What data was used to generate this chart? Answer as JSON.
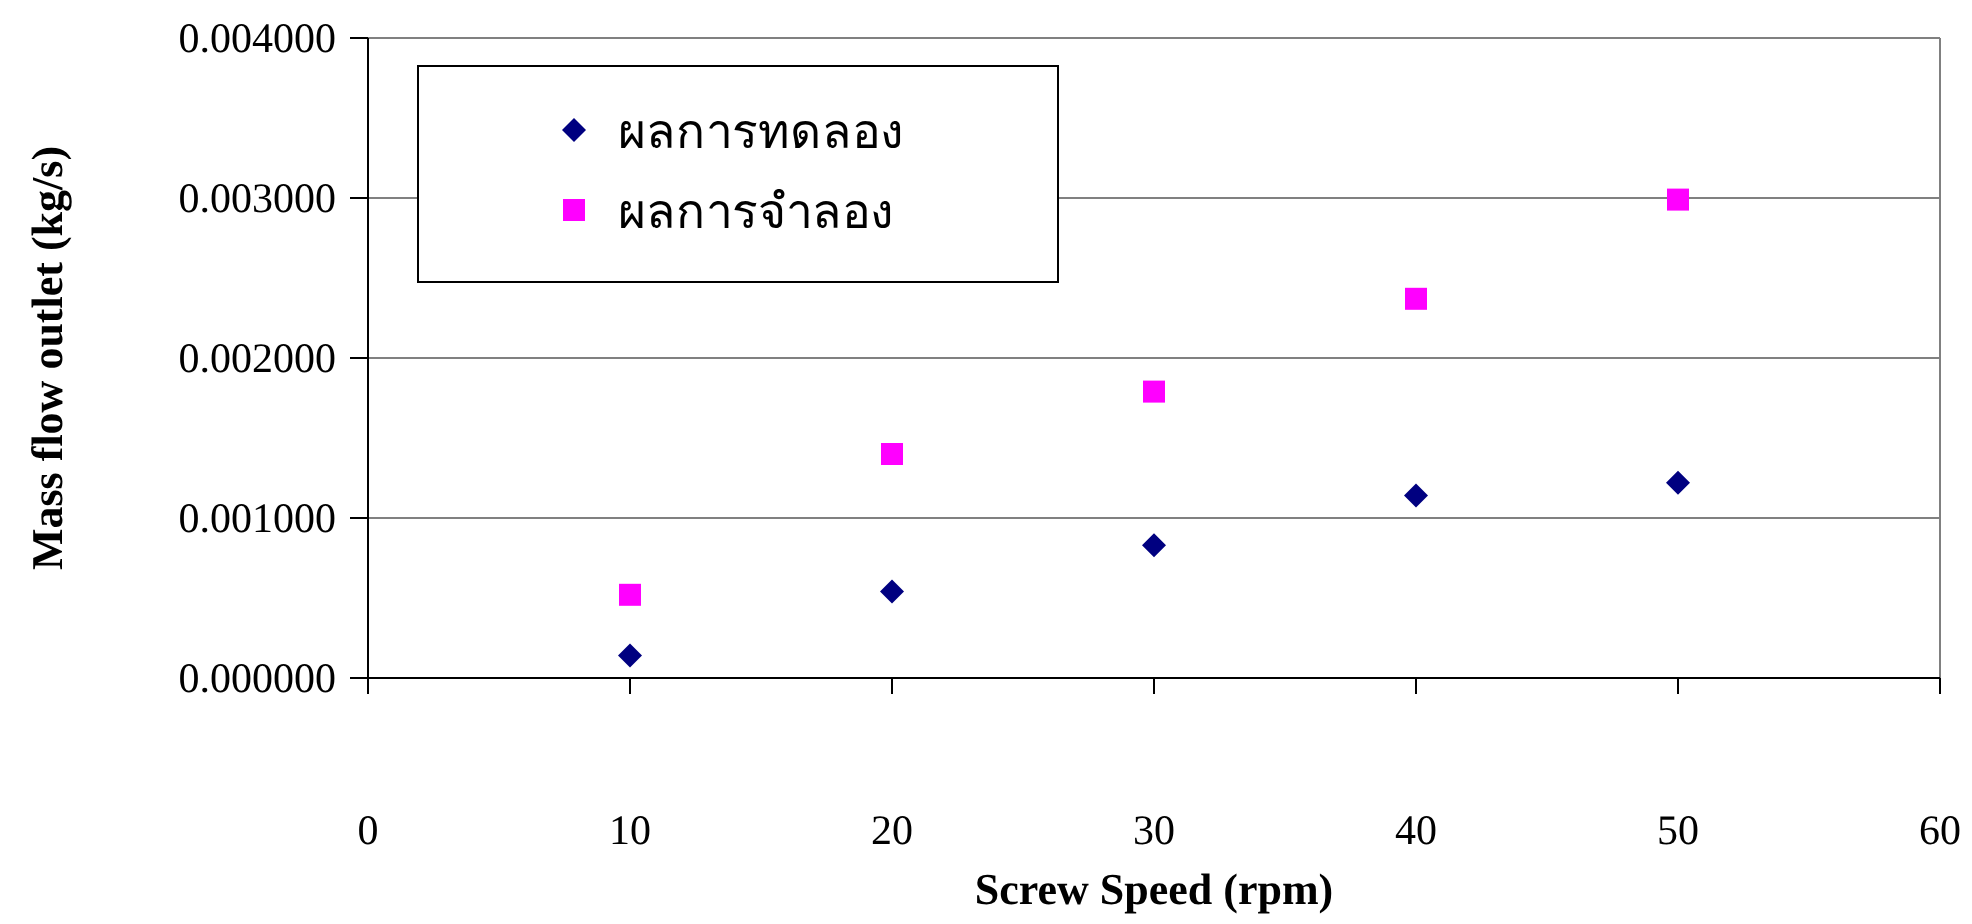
{
  "chart_data": {
    "type": "scatter",
    "xlabel": "Screw Speed (rpm)",
    "ylabel": "Mass flow outlet (kg/s)",
    "x": [
      10,
      20,
      30,
      40,
      50
    ],
    "series": [
      {
        "name": "ผลการทดลอง",
        "color": "#000080",
        "marker": "diamond",
        "values": [
          0.00014,
          0.00054,
          0.00083,
          0.00114,
          0.00122
        ]
      },
      {
        "name": "ผลการจำลอง",
        "color": "#ff00ff",
        "marker": "square",
        "values": [
          0.00052,
          0.0014,
          0.00179,
          0.00237,
          0.00299
        ]
      }
    ],
    "xlim": [
      0,
      60
    ],
    "xticks": [
      0,
      10,
      20,
      30,
      40,
      50,
      60
    ],
    "ylim": [
      0,
      0.004
    ],
    "yticks": [
      {
        "value": 0,
        "label": "0.000000"
      },
      {
        "value": 0.001,
        "label": "0.001000"
      },
      {
        "value": 0.002,
        "label": "0.002000"
      },
      {
        "value": 0.003,
        "label": "0.003000"
      },
      {
        "value": 0.004,
        "label": "0.004000"
      }
    ],
    "grid": "y",
    "legend": "top left"
  }
}
